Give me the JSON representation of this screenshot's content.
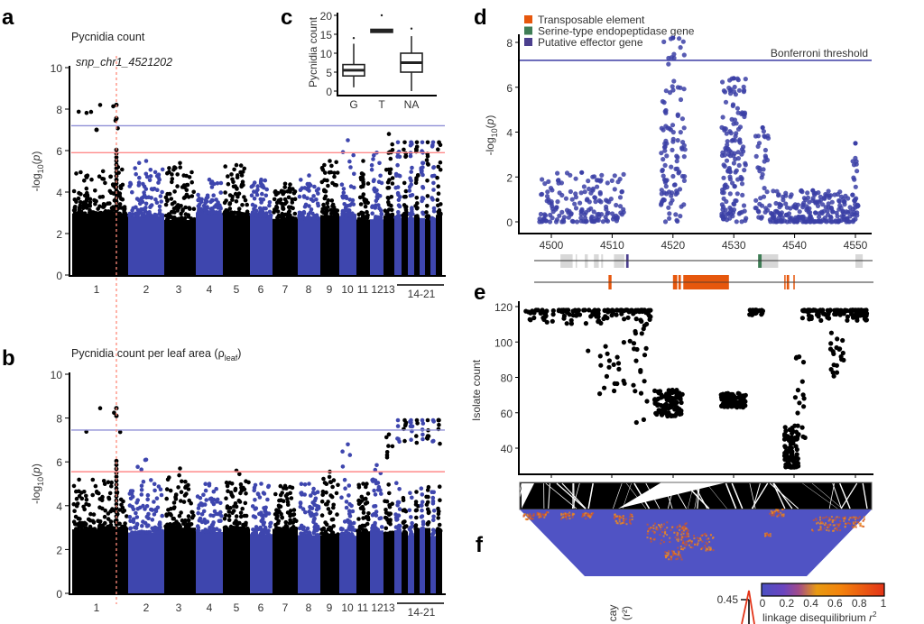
{
  "panels": {
    "a": {
      "label": "a",
      "title": "Pycnidia count",
      "annotation": "snp_chr1_4521202"
    },
    "b": {
      "label": "b",
      "title": "Pycnidia count per leaf area (ρ",
      "title_sub": "leaf",
      "title_end": ")"
    },
    "c": {
      "label": "c"
    },
    "d": {
      "label": "d"
    },
    "e": {
      "label": "e"
    },
    "f": {
      "label": "f"
    }
  },
  "colors": {
    "black": "#000000",
    "blue": "#3e46ae",
    "bonferroni": "#8f8fd6",
    "fdr": "#ff8a8a",
    "d_points": "#3b3fa6",
    "te": "#e6570d",
    "serine": "#3f7d56",
    "effector": "#4b3f8e",
    "ld_low": "#5053c8",
    "ld_high": "#e03a1a"
  },
  "chart_data": [
    {
      "id": "a",
      "type": "scatter",
      "title": "Pycnidia count",
      "ylabel": "-log10(p)",
      "ylim": [
        0,
        10
      ],
      "yticks": [
        "0",
        "2",
        "4",
        "6",
        "8",
        "10"
      ],
      "xticks": [
        "1",
        "2",
        "3",
        "4",
        "5",
        "6",
        "7",
        "8",
        "9",
        "10",
        "11",
        "12",
        "13",
        "14-21"
      ],
      "thresholds": {
        "bonferroni": 7.2,
        "fdr": 5.9
      },
      "highlight_snp": "snp_chr1_4521202",
      "chromosome_peaks": [
        {
          "chr": "1",
          "max": 8.2
        },
        {
          "chr": "2",
          "max": 5.5
        },
        {
          "chr": "3",
          "max": 5.4
        },
        {
          "chr": "4",
          "max": 4.6
        },
        {
          "chr": "5",
          "max": 5.3
        },
        {
          "chr": "6",
          "max": 4.6
        },
        {
          "chr": "7",
          "max": 4.4
        },
        {
          "chr": "8",
          "max": 4.8
        },
        {
          "chr": "9",
          "max": 5.5
        },
        {
          "chr": "10",
          "max": 6.5
        },
        {
          "chr": "11",
          "max": 5.5
        },
        {
          "chr": "12",
          "max": 5.9
        },
        {
          "chr": "13",
          "max": 6.8
        },
        {
          "chr": "14-21",
          "max": 6.4
        }
      ],
      "outliers": [
        {
          "chr": "1",
          "y": 7.0
        },
        {
          "chr": "1",
          "y": 7.55
        },
        {
          "chr": "1",
          "y": 8.2
        }
      ]
    },
    {
      "id": "b",
      "type": "scatter",
      "title": "Pycnidia count per leaf area (ρleaf)",
      "ylabel": "-log10(p)",
      "ylim": [
        0,
        10
      ],
      "yticks": [
        "0",
        "2",
        "4",
        "6",
        "8",
        "10"
      ],
      "xticks": [
        "1",
        "2",
        "3",
        "4",
        "5",
        "6",
        "7",
        "8",
        "9",
        "10",
        "11",
        "12",
        "13",
        "14-21"
      ],
      "thresholds": {
        "bonferroni": 7.45,
        "fdr": 5.55
      },
      "chromosome_peaks": [
        {
          "chr": "1",
          "max": 8.45
        },
        {
          "chr": "2",
          "max": 6.1
        },
        {
          "chr": "3",
          "max": 5.7
        },
        {
          "chr": "4",
          "max": 5.0
        },
        {
          "chr": "5",
          "max": 5.6
        },
        {
          "chr": "6",
          "max": 5.0
        },
        {
          "chr": "7",
          "max": 4.9
        },
        {
          "chr": "8",
          "max": 5.0
        },
        {
          "chr": "9",
          "max": 5.55
        },
        {
          "chr": "10",
          "max": 6.8
        },
        {
          "chr": "11",
          "max": 5.0
        },
        {
          "chr": "12",
          "max": 5.85
        },
        {
          "chr": "13",
          "max": 7.25
        },
        {
          "chr": "14-21",
          "max": 7.9
        }
      ],
      "outliers": [
        {
          "chr": "1",
          "y": 8.1
        },
        {
          "chr": "1",
          "y": 8.45
        },
        {
          "chr": "14-21",
          "y": 7.9
        }
      ]
    },
    {
      "id": "c",
      "type": "box",
      "ylabel": "Pycnidia count",
      "ylim": [
        0,
        20
      ],
      "yticks": [
        "0",
        "5",
        "10",
        "15",
        "20"
      ],
      "categories": [
        "G",
        "T",
        "NA"
      ],
      "boxes": [
        {
          "cat": "G",
          "min": 1,
          "q1": 4,
          "median": 5.5,
          "q3": 7,
          "max": 12.5,
          "outliers": [
            14
          ]
        },
        {
          "cat": "T",
          "min": 15.5,
          "q1": 15.5,
          "median": 16,
          "q3": 16.3,
          "max": 16.3,
          "outliers": [
            20
          ]
        },
        {
          "cat": "NA",
          "min": 0,
          "q1": 5,
          "median": 7.5,
          "q3": 10,
          "max": 14.5,
          "outliers": [
            16.5
          ]
        }
      ]
    },
    {
      "id": "d",
      "type": "scatter",
      "ylabel": "-log10(p)",
      "ylim": [
        0,
        8.3
      ],
      "yticks": [
        "0",
        "2",
        "4",
        "6",
        "8"
      ],
      "xticks": [
        "4500",
        "4510",
        "4520",
        "4530",
        "4540",
        "4550"
      ],
      "xlim": [
        4497,
        4551
      ],
      "threshold_label": "Bonferroni threshold",
      "threshold": 7.2,
      "legend": [
        {
          "label": "Transposable element",
          "color": "#e6570d"
        },
        {
          "label": "Serine-type endopeptidase gene",
          "color": "#3f7d56"
        },
        {
          "label": "Putative effector gene",
          "color": "#4b3f8e"
        }
      ],
      "legend_position": "top-left",
      "clusters": [
        {
          "x": [
            4498,
            4512
          ],
          "ymax": 2.2,
          "n": 160
        },
        {
          "x": [
            4518,
            4522
          ],
          "ymax": 8.2,
          "n": 110
        },
        {
          "x": [
            4528,
            4532
          ],
          "ymax": 6.4,
          "n": 150
        },
        {
          "x": [
            4533.5,
            4536
          ],
          "ymax": 4.2,
          "n": 40
        },
        {
          "x": [
            4536,
            4550
          ],
          "ymax": 1.4,
          "n": 220
        },
        {
          "x": [
            4549.5,
            4550.5
          ],
          "ymax": 3.5,
          "n": 20
        }
      ],
      "gene_track": [
        {
          "type": "gene",
          "start": 4501.5,
          "end": 4503.5,
          "color": "#d8d8d8"
        },
        {
          "type": "gene",
          "start": 4504,
          "end": 4504.2,
          "color": "#d8d8d8"
        },
        {
          "type": "gene",
          "start": 4505.5,
          "end": 4506,
          "color": "#d8d8d8"
        },
        {
          "type": "gene",
          "start": 4507,
          "end": 4507.8,
          "color": "#d8d8d8"
        },
        {
          "type": "gene",
          "start": 4508.2,
          "end": 4508.5,
          "color": "#d8d8d8"
        },
        {
          "type": "gene",
          "start": 4510.3,
          "end": 4512,
          "color": "#d8d8d8"
        },
        {
          "type": "effector",
          "start": 4512.3,
          "end": 4512.7,
          "color": "#4b3f8e"
        },
        {
          "type": "serine",
          "start": 4534,
          "end": 4534.6,
          "color": "#3f7d56"
        },
        {
          "type": "gene",
          "start": 4534.6,
          "end": 4537.3,
          "color": "#d8d8d8"
        },
        {
          "type": "gene",
          "start": 4550,
          "end": 4551.2,
          "color": "#d8d8d8"
        }
      ],
      "te_track": [
        {
          "start": 4509.4,
          "end": 4509.9
        },
        {
          "start": 4520,
          "end": 4520.7
        },
        {
          "start": 4520.9,
          "end": 4521.3
        },
        {
          "start": 4521.7,
          "end": 4529.2
        },
        {
          "start": 4538.3,
          "end": 4538.4
        },
        {
          "start": 4538.7,
          "end": 4539.1
        },
        {
          "start": 4539.8,
          "end": 4539.95
        }
      ]
    },
    {
      "id": "e",
      "type": "scatter",
      "ylabel": "Isolate count",
      "ylim": [
        27,
        122
      ],
      "yticks": [
        "40",
        "60",
        "80",
        "100",
        "120"
      ],
      "groups": [
        {
          "x": [
            0.01,
            0.37
          ],
          "y": [
            110,
            118
          ],
          "n": 140
        },
        {
          "x": [
            0.22,
            0.28
          ],
          "y": [
            70,
            100
          ],
          "n": 16
        },
        {
          "x": [
            0.29,
            0.33
          ],
          "y": [
            75,
            108
          ],
          "n": 8
        },
        {
          "x": [
            0.32,
            0.36
          ],
          "y": [
            53,
            112
          ],
          "n": 16
        },
        {
          "x": [
            0.38,
            0.46
          ],
          "y": [
            58,
            73
          ],
          "n": 90
        },
        {
          "x": [
            0.57,
            0.64
          ],
          "y": [
            63,
            71
          ],
          "n": 90
        },
        {
          "x": [
            0.65,
            0.69
          ],
          "y": [
            115,
            118
          ],
          "n": 30
        },
        {
          "x": [
            0.75,
            0.79
          ],
          "y": [
            29,
            52
          ],
          "n": 70
        },
        {
          "x": [
            0.78,
            0.81
          ],
          "y": [
            41,
            93
          ],
          "n": 20
        },
        {
          "x": [
            0.8,
            0.99
          ],
          "y": [
            112,
            118
          ],
          "n": 120
        },
        {
          "x": [
            0.88,
            0.92
          ],
          "y": [
            76,
            107
          ],
          "n": 20
        }
      ],
      "isolated": [
        {
          "x": 0.19,
          "y": 95
        }
      ]
    },
    {
      "id": "f",
      "type": "heatmap",
      "colorbar_label": "linkage disequilibrium r",
      "colorbar_label_sup": "2",
      "colorbar_ticks": [
        "0",
        "0.2",
        "0.4",
        "0.6",
        "0.8",
        "1"
      ],
      "colorbar_range": [
        0,
        1
      ],
      "ylabel_partial": "cay",
      "ylabel_partial2": "(r²)",
      "ytick_partial": "0.45"
    }
  ]
}
